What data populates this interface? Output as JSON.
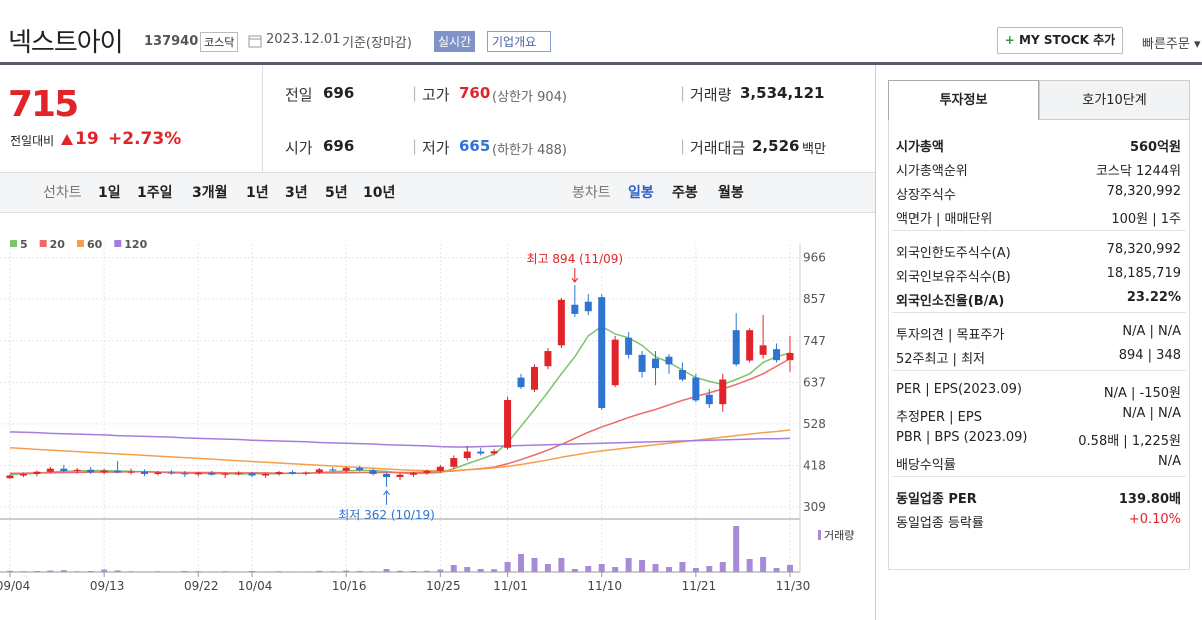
{
  "header": {
    "title": "넥스트아이",
    "code": "137940",
    "market": "코스닥",
    "date": "2023.12.01",
    "basis": "기준(장마감)",
    "realtime": "실시간",
    "company": "기업개요",
    "mystock": "MY STOCK 추가",
    "quick_order": "빠른주문"
  },
  "quote": {
    "price": "715",
    "change_label": "전일대비",
    "change": "19",
    "change_pct": "+2.73%",
    "fields": [
      {
        "label": "전일",
        "value": "696"
      },
      {
        "label": "고가",
        "value": "760",
        "note": "(상한가 904)"
      },
      {
        "label": "거래량",
        "value": "3,534,121"
      },
      {
        "label": "시가",
        "value": "696"
      },
      {
        "label": "저가",
        "value": "665",
        "note": "(하한가 488)"
      },
      {
        "label": "거래대금",
        "value": "2,526",
        "unit": "백만"
      }
    ]
  },
  "period_tabs": {
    "line_label": "선차트",
    "line": [
      "1일",
      "1주일",
      "3개월",
      "1년",
      "3년",
      "5년",
      "10년"
    ],
    "candle_label": "봉차트",
    "candle": [
      "일봉",
      "주봉",
      "월봉"
    ]
  },
  "chart_data": {
    "type": "candlestick",
    "categories": [
      "09/04",
      null,
      null,
      null,
      null,
      null,
      null,
      "09/13",
      null,
      null,
      null,
      null,
      null,
      null,
      "09/22",
      null,
      null,
      null,
      "10/04",
      null,
      null,
      null,
      null,
      null,
      null,
      "10/16",
      null,
      null,
      null,
      null,
      null,
      null,
      "10/25",
      null,
      null,
      null,
      null,
      "11/01",
      null,
      null,
      null,
      null,
      null,
      null,
      "11/10",
      null,
      null,
      null,
      null,
      null,
      null,
      "11/21",
      null,
      null,
      null,
      null,
      null,
      null,
      "11/30"
    ],
    "open": [
      385,
      392,
      396,
      402,
      410,
      404,
      407,
      400,
      405,
      400,
      402,
      396,
      400,
      398,
      395,
      399,
      394,
      397,
      398,
      392,
      396,
      401,
      397,
      400,
      408,
      405,
      412,
      406,
      396,
      388,
      394,
      399,
      404,
      415,
      438,
      455,
      450,
      465,
      650,
      618,
      680,
      735,
      842,
      850,
      862,
      630,
      755,
      710,
      700,
      705,
      670,
      650,
      605,
      580,
      775,
      695,
      710,
      725,
      696
    ],
    "high": [
      395,
      400,
      405,
      415,
      420,
      412,
      414,
      410,
      430,
      410,
      408,
      404,
      406,
      404,
      402,
      404,
      400,
      403,
      402,
      399,
      404,
      406,
      403,
      412,
      414,
      415,
      418,
      410,
      400,
      398,
      402,
      408,
      420,
      445,
      470,
      465,
      462,
      600,
      660,
      685,
      728,
      860,
      894,
      870,
      870,
      760,
      770,
      720,
      720,
      712,
      690,
      660,
      620,
      660,
      820,
      780,
      815,
      740,
      760
    ],
    "low": [
      383,
      388,
      390,
      398,
      400,
      398,
      396,
      395,
      398,
      395,
      390,
      392,
      394,
      388,
      390,
      392,
      385,
      392,
      388,
      386,
      392,
      394,
      392,
      396,
      402,
      400,
      403,
      392,
      362,
      380,
      388,
      394,
      400,
      410,
      432,
      445,
      445,
      460,
      620,
      612,
      672,
      728,
      810,
      815,
      565,
      625,
      700,
      650,
      630,
      660,
      640,
      585,
      570,
      560,
      680,
      690,
      700,
      690,
      665
    ],
    "close": [
      392,
      396,
      402,
      410,
      404,
      407,
      400,
      405,
      400,
      402,
      396,
      400,
      398,
      395,
      399,
      394,
      397,
      398,
      392,
      396,
      401,
      397,
      400,
      408,
      405,
      412,
      406,
      396,
      388,
      394,
      399,
      404,
      415,
      438,
      455,
      450,
      456,
      591,
      625,
      678,
      720,
      855,
      818,
      825,
      570,
      750,
      710,
      665,
      675,
      685,
      645,
      590,
      580,
      645,
      685,
      775,
      735,
      696,
      715
    ],
    "up_color": "#e0242a",
    "down_color": "#2f74d0",
    "series": [
      {
        "name": "5",
        "color": "#7ac46b",
        "values": [
          395,
          396,
          398,
          401,
          403,
          404,
          405,
          405,
          404,
          403,
          402,
          401,
          399,
          398,
          398,
          397,
          397,
          396,
          397,
          396,
          397,
          398,
          398,
          400,
          402,
          404,
          406,
          405,
          403,
          399,
          397,
          398,
          400,
          410,
          423,
          435,
          448,
          478,
          522,
          566,
          612,
          660,
          705,
          760,
          785,
          765,
          755,
          735,
          705,
          690,
          670,
          650,
          640,
          632,
          645,
          660,
          690,
          705,
          715
        ]
      },
      {
        "name": "20",
        "color": "#ef6b6b",
        "values": [
          398,
          398,
          399,
          399,
          400,
          400,
          401,
          401,
          401,
          402,
          402,
          401,
          401,
          400,
          400,
          400,
          399,
          399,
          399,
          399,
          398,
          398,
          398,
          399,
          399,
          399,
          400,
          400,
          400,
          400,
          400,
          401,
          402,
          404,
          407,
          410,
          414,
          423,
          434,
          446,
          459,
          474,
          490,
          506,
          520,
          532,
          545,
          556,
          566,
          578,
          590,
          600,
          610,
          620,
          632,
          645,
          660,
          680,
          700
        ]
      },
      {
        "name": "60",
        "color": "#f4a04a",
        "values": [
          465,
          463,
          461,
          459,
          457,
          455,
          453,
          451,
          449,
          447,
          445,
          443,
          441,
          439,
          437,
          435,
          433,
          431,
          429,
          427,
          425,
          423,
          421,
          419,
          417,
          415,
          413,
          411,
          409,
          407,
          406,
          405,
          405,
          405,
          407,
          409,
          412,
          416,
          421,
          427,
          433,
          440,
          446,
          452,
          457,
          461,
          465,
          469,
          473,
          477,
          481,
          485,
          489,
          493,
          497,
          501,
          505,
          508,
          512
        ]
      },
      {
        "name": "120",
        "color": "#a57ddd",
        "values": [
          507,
          506,
          505,
          503,
          502,
          501,
          500,
          499,
          497,
          496,
          495,
          494,
          493,
          491,
          490,
          489,
          488,
          487,
          485,
          484,
          483,
          482,
          481,
          479,
          478,
          477,
          476,
          475,
          473,
          472,
          471,
          470,
          468,
          467,
          467,
          468,
          469,
          470,
          471,
          472,
          473,
          474,
          475,
          476,
          477,
          478,
          479,
          480,
          481,
          482,
          483,
          484,
          485,
          486,
          487,
          488,
          489,
          489,
          490
        ]
      }
    ],
    "volume": [
      600000,
      400000,
      500000,
      700000,
      900000,
      400000,
      500000,
      1200000,
      800000,
      400000,
      300000,
      400000,
      300000,
      500000,
      400000,
      300000,
      400000,
      300000,
      500000,
      300000,
      400000,
      300000,
      300000,
      600000,
      400000,
      700000,
      500000,
      400000,
      1500000,
      600000,
      500000,
      600000,
      1200000,
      3500000,
      2500000,
      1500000,
      1400000,
      5000000,
      9000000,
      7000000,
      4000000,
      7000000,
      1500000,
      3000000,
      4000000,
      2500000,
      7000000,
      6000000,
      4000000,
      2500000,
      5000000,
      2000000,
      3000000,
      5000000,
      23000000,
      6500000,
      7500000,
      2000000,
      3534121
    ],
    "volume_label": "거래량",
    "volume_color": "#a88bd6",
    "vlim": [
      0,
      25000000
    ],
    "ylim": [
      280,
      1010
    ],
    "yticks": [
      309,
      418,
      528,
      637,
      747,
      857,
      966
    ],
    "grid": true,
    "annotations": [
      {
        "text": "최고 894 (11/09)",
        "color": "#e0242a"
      },
      {
        "text": "최저 362 (10/19)",
        "color": "#2f74d0"
      }
    ]
  },
  "invest": {
    "tabs": [
      "투자정보",
      "호가10단계"
    ],
    "sections": [
      [
        {
          "label": "시가총액",
          "value": "560억원"
        },
        {
          "label": "시가총액순위",
          "value": "코스닥 1244위"
        },
        {
          "label": "상장주식수",
          "value": "78,320,992"
        },
        {
          "label": "액면가 | 매매단위",
          "value": "100원 | 1주"
        }
      ],
      [
        {
          "label": "외국인한도주식수(A)",
          "value": "78,320,992"
        },
        {
          "label": "외국인보유주식수(B)",
          "value": "18,185,719"
        },
        {
          "label": "외국인소진율(B/A)",
          "value": "23.22%"
        }
      ],
      [
        {
          "label": "투자의견 | 목표주가",
          "value": "N/A | N/A"
        },
        {
          "label": "52주최고 | 최저",
          "value": "894 | 348"
        }
      ],
      [
        {
          "label": "PER | EPS(2023.09)",
          "value": "N/A | -150원"
        },
        {
          "label": "추정PER | EPS",
          "value": "N/A | N/A"
        },
        {
          "label": "PBR | BPS (2023.09)",
          "value": "0.58배 | 1,225원"
        },
        {
          "label": "배당수익률",
          "value": "N/A"
        }
      ],
      [
        {
          "label": "동일업종 PER",
          "value": "139.80배"
        },
        {
          "label": "동일업종 등락률",
          "value": "+0.10%"
        }
      ]
    ]
  }
}
